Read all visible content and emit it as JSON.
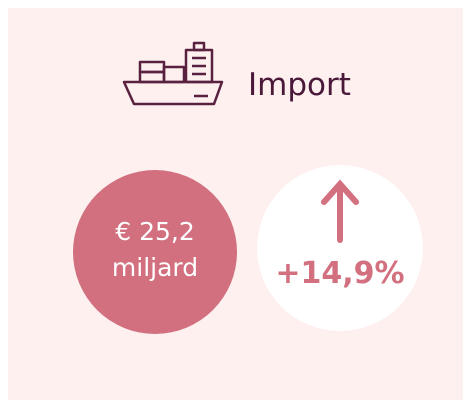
{
  "header": {
    "title": "Import"
  },
  "stats": {
    "value_line1": "€ 25,2",
    "value_line2": "miljard",
    "change": "+14,9%"
  }
}
